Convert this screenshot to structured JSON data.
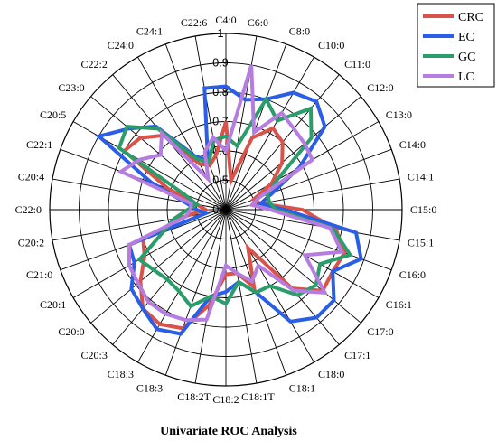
{
  "chart_data": {
    "type": "radar",
    "title": "Univariate ROC Analysis",
    "categories": [
      "C4:0",
      "C6:0",
      "C8:0",
      "C10:0",
      "C11:0",
      "C12:0",
      "C13:0",
      "C14:0",
      "C14:1",
      "C15:0",
      "C15:1",
      "C16:0",
      "C16:1",
      "C17:0",
      "C17:1",
      "C18:0",
      "C18:1",
      "C18:1T",
      "C18:2",
      "C18:2T",
      "C18:3",
      "C18:3",
      "C20:3",
      "C20:0",
      "C20:1",
      "C21:0",
      "C20:2",
      "C22:0",
      "C20:4",
      "C22:1",
      "C20:5",
      "C23:0",
      "C22:2",
      "C24:0",
      "C24:1",
      "C22:6"
    ],
    "rlim": [
      0.4,
      1.0
    ],
    "ticks": [
      "0.4",
      "0.5",
      "0.6",
      "0.7",
      "0.8",
      "0.9",
      "1"
    ],
    "grid": true,
    "legend_position": "top-right",
    "series": [
      {
        "name": "CRC",
        "color": "#d9534a",
        "values": [
          0.7,
          0.5,
          0.66,
          0.72,
          0.7,
          0.65,
          0.58,
          0.5,
          0.52,
          0.66,
          0.78,
          0.83,
          0.82,
          0.83,
          0.75,
          0.55,
          0.68,
          0.62,
          0.62,
          0.73,
          0.83,
          0.85,
          0.84,
          0.78,
          0.72,
          0.7,
          0.55,
          0.47,
          0.5,
          0.61,
          0.8,
          0.78,
          0.73,
          0.58,
          0.56,
          0.59
        ]
      },
      {
        "name": "EC",
        "color": "#2b5ee6",
        "values": [
          0.82,
          0.78,
          0.8,
          0.86,
          0.88,
          0.84,
          0.69,
          0.57,
          0.52,
          0.6,
          0.85,
          0.89,
          0.82,
          0.88,
          0.88,
          0.84,
          0.7,
          0.65,
          0.68,
          0.7,
          0.85,
          0.87,
          0.84,
          0.82,
          0.76,
          0.75,
          0.47,
          0.5,
          0.54,
          0.67,
          0.9,
          0.83,
          0.77,
          0.61,
          0.58,
          0.82
        ]
      },
      {
        "name": "GC",
        "color": "#2a9d6a",
        "values": [
          0.65,
          0.62,
          0.8,
          0.75,
          0.85,
          0.78,
          0.6,
          0.55,
          0.55,
          0.57,
          0.77,
          0.85,
          0.77,
          0.8,
          0.78,
          0.7,
          0.7,
          0.65,
          0.72,
          0.7,
          0.75,
          0.72,
          0.71,
          0.72,
          0.74,
          0.63,
          0.58,
          0.53,
          0.5,
          0.55,
          0.82,
          0.84,
          0.76,
          0.6,
          0.57,
          0.64
        ]
      },
      {
        "name": "LC",
        "color": "#b57de0",
        "values": [
          0.6,
          0.9,
          0.68,
          0.78,
          0.76,
          0.75,
          0.74,
          0.52,
          0.49,
          0.55,
          0.76,
          0.82,
          0.71,
          0.84,
          0.76,
          0.62,
          0.66,
          0.62,
          0.59,
          0.78,
          0.8,
          0.81,
          0.81,
          0.79,
          0.78,
          0.75,
          0.54,
          0.52,
          0.52,
          0.78,
          0.74,
          0.69,
          0.74,
          0.52,
          0.61,
          0.65
        ]
      }
    ]
  }
}
